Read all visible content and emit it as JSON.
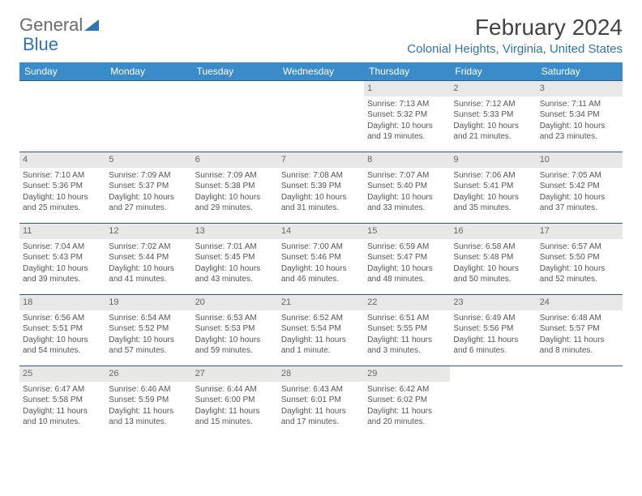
{
  "logo": {
    "text1": "General",
    "text2": "Blue"
  },
  "title": "February 2024",
  "location": "Colonial Heights, Virginia, United States",
  "colors": {
    "header_bg": "#3a8bc9",
    "header_text": "#ffffff",
    "location_text": "#2e75b6",
    "row_border": "#2e5c8a",
    "daynum_bg": "#e8e8e8",
    "body_text": "#555555"
  },
  "day_headers": [
    "Sunday",
    "Monday",
    "Tuesday",
    "Wednesday",
    "Thursday",
    "Friday",
    "Saturday"
  ],
  "weeks": [
    [
      {
        "num": "",
        "sunrise": "",
        "sunset": "",
        "daylight": "",
        "empty": true
      },
      {
        "num": "",
        "sunrise": "",
        "sunset": "",
        "daylight": "",
        "empty": true
      },
      {
        "num": "",
        "sunrise": "",
        "sunset": "",
        "daylight": "",
        "empty": true
      },
      {
        "num": "",
        "sunrise": "",
        "sunset": "",
        "daylight": "",
        "empty": true
      },
      {
        "num": "1",
        "sunrise": "Sunrise: 7:13 AM",
        "sunset": "Sunset: 5:32 PM",
        "daylight": "Daylight: 10 hours and 19 minutes."
      },
      {
        "num": "2",
        "sunrise": "Sunrise: 7:12 AM",
        "sunset": "Sunset: 5:33 PM",
        "daylight": "Daylight: 10 hours and 21 minutes."
      },
      {
        "num": "3",
        "sunrise": "Sunrise: 7:11 AM",
        "sunset": "Sunset: 5:34 PM",
        "daylight": "Daylight: 10 hours and 23 minutes."
      }
    ],
    [
      {
        "num": "4",
        "sunrise": "Sunrise: 7:10 AM",
        "sunset": "Sunset: 5:36 PM",
        "daylight": "Daylight: 10 hours and 25 minutes."
      },
      {
        "num": "5",
        "sunrise": "Sunrise: 7:09 AM",
        "sunset": "Sunset: 5:37 PM",
        "daylight": "Daylight: 10 hours and 27 minutes."
      },
      {
        "num": "6",
        "sunrise": "Sunrise: 7:09 AM",
        "sunset": "Sunset: 5:38 PM",
        "daylight": "Daylight: 10 hours and 29 minutes."
      },
      {
        "num": "7",
        "sunrise": "Sunrise: 7:08 AM",
        "sunset": "Sunset: 5:39 PM",
        "daylight": "Daylight: 10 hours and 31 minutes."
      },
      {
        "num": "8",
        "sunrise": "Sunrise: 7:07 AM",
        "sunset": "Sunset: 5:40 PM",
        "daylight": "Daylight: 10 hours and 33 minutes."
      },
      {
        "num": "9",
        "sunrise": "Sunrise: 7:06 AM",
        "sunset": "Sunset: 5:41 PM",
        "daylight": "Daylight: 10 hours and 35 minutes."
      },
      {
        "num": "10",
        "sunrise": "Sunrise: 7:05 AM",
        "sunset": "Sunset: 5:42 PM",
        "daylight": "Daylight: 10 hours and 37 minutes."
      }
    ],
    [
      {
        "num": "11",
        "sunrise": "Sunrise: 7:04 AM",
        "sunset": "Sunset: 5:43 PM",
        "daylight": "Daylight: 10 hours and 39 minutes."
      },
      {
        "num": "12",
        "sunrise": "Sunrise: 7:02 AM",
        "sunset": "Sunset: 5:44 PM",
        "daylight": "Daylight: 10 hours and 41 minutes."
      },
      {
        "num": "13",
        "sunrise": "Sunrise: 7:01 AM",
        "sunset": "Sunset: 5:45 PM",
        "daylight": "Daylight: 10 hours and 43 minutes."
      },
      {
        "num": "14",
        "sunrise": "Sunrise: 7:00 AM",
        "sunset": "Sunset: 5:46 PM",
        "daylight": "Daylight: 10 hours and 46 minutes."
      },
      {
        "num": "15",
        "sunrise": "Sunrise: 6:59 AM",
        "sunset": "Sunset: 5:47 PM",
        "daylight": "Daylight: 10 hours and 48 minutes."
      },
      {
        "num": "16",
        "sunrise": "Sunrise: 6:58 AM",
        "sunset": "Sunset: 5:48 PM",
        "daylight": "Daylight: 10 hours and 50 minutes."
      },
      {
        "num": "17",
        "sunrise": "Sunrise: 6:57 AM",
        "sunset": "Sunset: 5:50 PM",
        "daylight": "Daylight: 10 hours and 52 minutes."
      }
    ],
    [
      {
        "num": "18",
        "sunrise": "Sunrise: 6:56 AM",
        "sunset": "Sunset: 5:51 PM",
        "daylight": "Daylight: 10 hours and 54 minutes."
      },
      {
        "num": "19",
        "sunrise": "Sunrise: 6:54 AM",
        "sunset": "Sunset: 5:52 PM",
        "daylight": "Daylight: 10 hours and 57 minutes."
      },
      {
        "num": "20",
        "sunrise": "Sunrise: 6:53 AM",
        "sunset": "Sunset: 5:53 PM",
        "daylight": "Daylight: 10 hours and 59 minutes."
      },
      {
        "num": "21",
        "sunrise": "Sunrise: 6:52 AM",
        "sunset": "Sunset: 5:54 PM",
        "daylight": "Daylight: 11 hours and 1 minute."
      },
      {
        "num": "22",
        "sunrise": "Sunrise: 6:51 AM",
        "sunset": "Sunset: 5:55 PM",
        "daylight": "Daylight: 11 hours and 3 minutes."
      },
      {
        "num": "23",
        "sunrise": "Sunrise: 6:49 AM",
        "sunset": "Sunset: 5:56 PM",
        "daylight": "Daylight: 11 hours and 6 minutes."
      },
      {
        "num": "24",
        "sunrise": "Sunrise: 6:48 AM",
        "sunset": "Sunset: 5:57 PM",
        "daylight": "Daylight: 11 hours and 8 minutes."
      }
    ],
    [
      {
        "num": "25",
        "sunrise": "Sunrise: 6:47 AM",
        "sunset": "Sunset: 5:58 PM",
        "daylight": "Daylight: 11 hours and 10 minutes."
      },
      {
        "num": "26",
        "sunrise": "Sunrise: 6:46 AM",
        "sunset": "Sunset: 5:59 PM",
        "daylight": "Daylight: 11 hours and 13 minutes."
      },
      {
        "num": "27",
        "sunrise": "Sunrise: 6:44 AM",
        "sunset": "Sunset: 6:00 PM",
        "daylight": "Daylight: 11 hours and 15 minutes."
      },
      {
        "num": "28",
        "sunrise": "Sunrise: 6:43 AM",
        "sunset": "Sunset: 6:01 PM",
        "daylight": "Daylight: 11 hours and 17 minutes."
      },
      {
        "num": "29",
        "sunrise": "Sunrise: 6:42 AM",
        "sunset": "Sunset: 6:02 PM",
        "daylight": "Daylight: 11 hours and 20 minutes."
      },
      {
        "num": "",
        "sunrise": "",
        "sunset": "",
        "daylight": "",
        "empty": true
      },
      {
        "num": "",
        "sunrise": "",
        "sunset": "",
        "daylight": "",
        "empty": true
      }
    ]
  ]
}
